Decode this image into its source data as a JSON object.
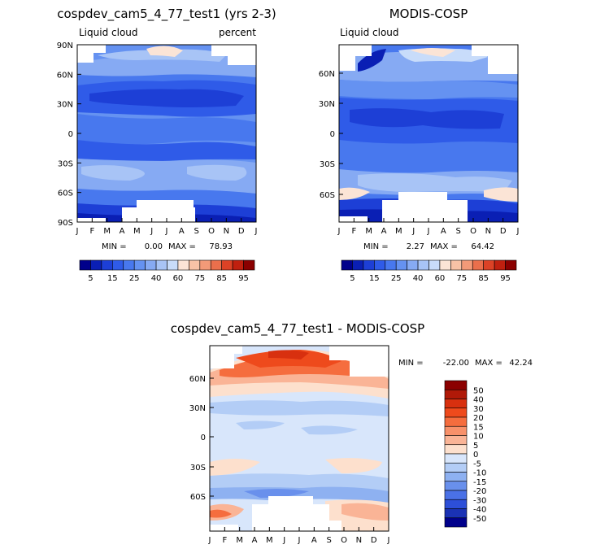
{
  "chart_data": [
    {
      "type": "heatmap",
      "title": "cospdev_cam5_4_77_test1 (yrs 2-3)",
      "subtitle_left": "Liquid cloud",
      "subtitle_right": "percent",
      "stats": {
        "min_label": "MIN =",
        "min": "0.00",
        "max_label": "MAX =",
        "max": "78.93"
      },
      "colorbar_labels": [
        "5",
        "15",
        "25",
        "40",
        "60",
        "75",
        "85",
        "95"
      ]
    },
    {
      "type": "heatmap",
      "title": "MODIS-COSP",
      "subtitle_left": "Liquid cloud",
      "subtitle_right": "",
      "stats": {
        "min_label": "MIN =",
        "min": "2.27",
        "max_label": "MAX =",
        "max": "64.42"
      },
      "colorbar_labels": [
        "5",
        "15",
        "25",
        "40",
        "60",
        "75",
        "85",
        "95"
      ]
    },
    {
      "type": "heatmap",
      "title": "cospdev_cam5_4_77_test1 - MODIS-COSP",
      "stats": {
        "min_label": "MIN =",
        "min": "-22.00",
        "max_label": "MAX =",
        "max": "42.24"
      },
      "colorbar_labels": [
        "50",
        "40",
        "30",
        "20",
        "15",
        "10",
        "5",
        "0",
        "-5",
        "-10",
        "-15",
        "-20",
        "-30",
        "-40",
        "-50"
      ]
    }
  ],
  "axes": {
    "months": [
      "J",
      "F",
      "M",
      "A",
      "M",
      "J",
      "J",
      "A",
      "S",
      "O",
      "N",
      "D",
      "J"
    ],
    "lat_full": [
      "90N",
      "60N",
      "30N",
      "0",
      "30S",
      "60S",
      "90S"
    ],
    "lat_partial": [
      "60N",
      "30N",
      "0",
      "30S",
      "60S"
    ]
  },
  "colors": {
    "abs_scale": [
      "#00008b",
      "#0a1fb4",
      "#1d3fd6",
      "#2f5be8",
      "#4878ee",
      "#6592f1",
      "#86aaf3",
      "#a8c4f6",
      "#c8dcfa",
      "#fbe4d6",
      "#f7c2a6",
      "#f29a78",
      "#ea6f4c",
      "#dc4226",
      "#c0200f",
      "#8b0000"
    ],
    "diff_scale": [
      "#8b0000",
      "#b01908",
      "#d8300f",
      "#ee4a1c",
      "#f56d3e",
      "#f8916a",
      "#fab496",
      "#fde0cd",
      "#d8e6fb",
      "#b3cdf6",
      "#8eb1f1",
      "#6990ec",
      "#4a71e6",
      "#2d4fd8",
      "#1a32b5",
      "#00008b"
    ]
  }
}
